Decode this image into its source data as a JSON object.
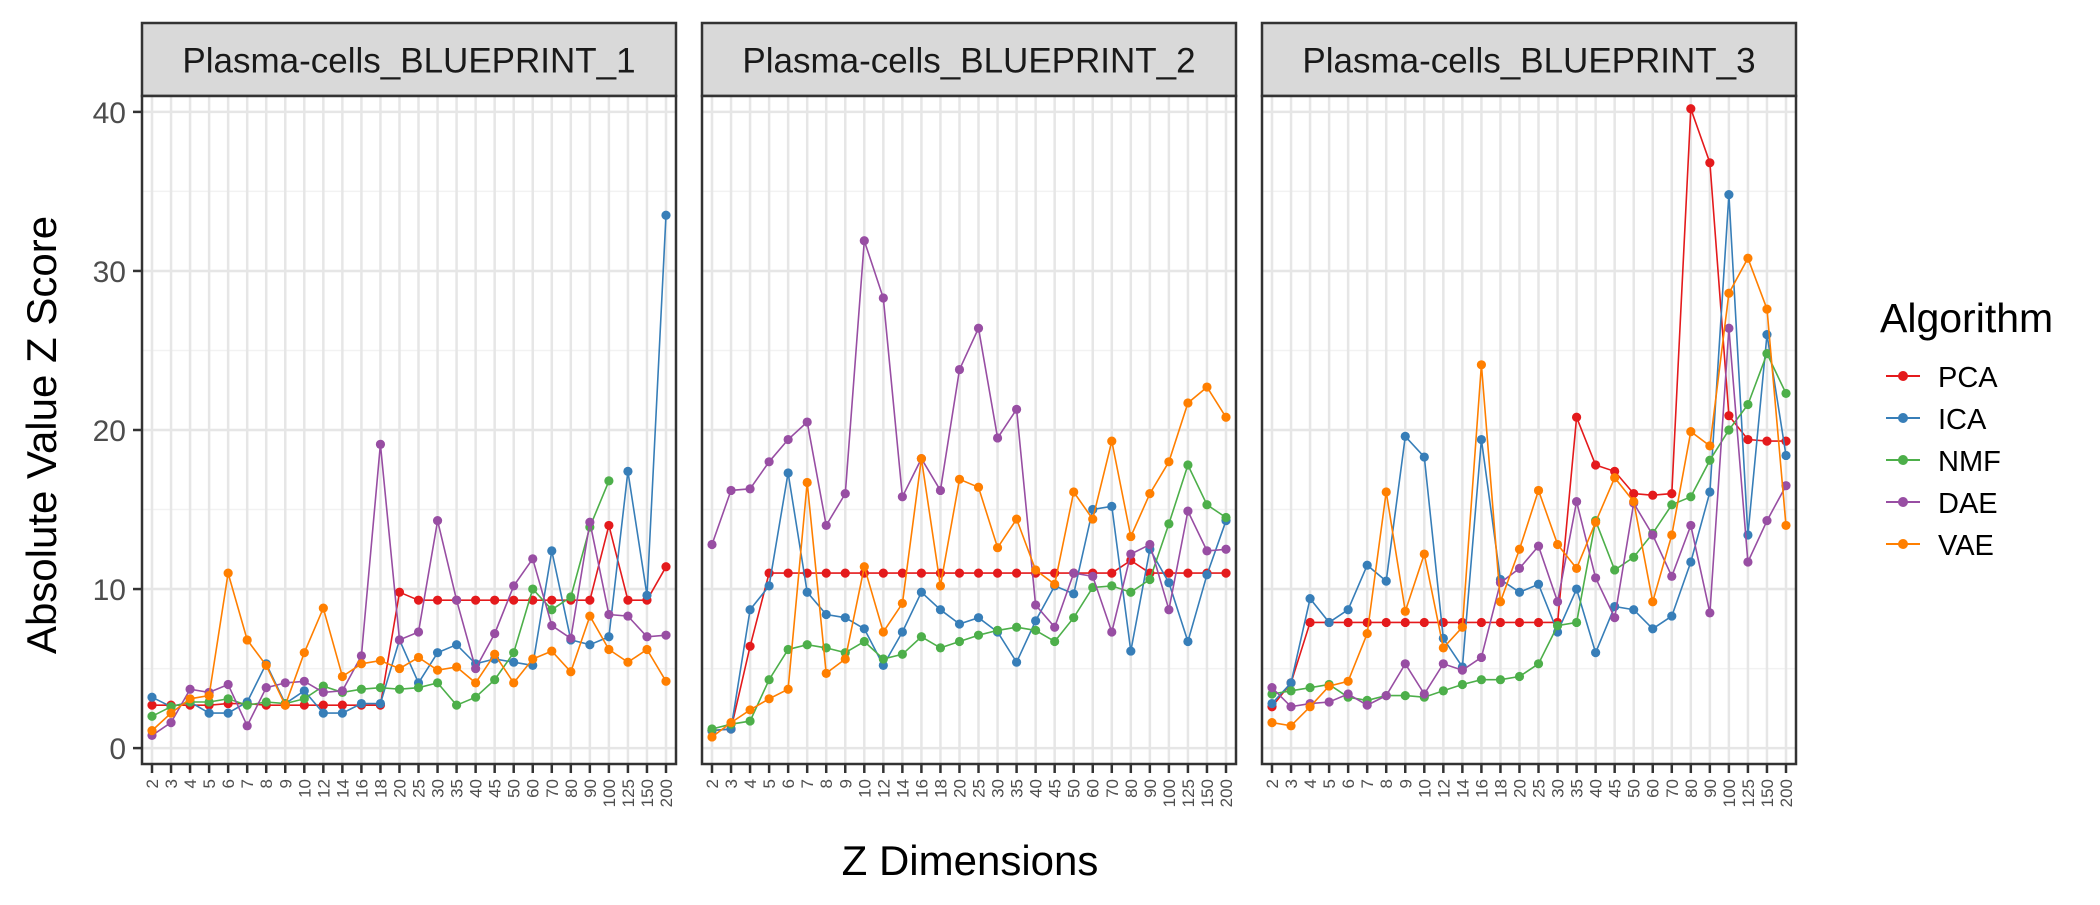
{
  "chart_data": {
    "type": "line",
    "ylabel": "Absolute Value Z Score",
    "xlabel": "Z Dimensions",
    "ylim": [
      -1,
      41
    ],
    "y_ticks": [
      0,
      10,
      20,
      30,
      40
    ],
    "grid": true,
    "legend": {
      "title": "Algorithm",
      "placement": "right",
      "entries": [
        "PCA",
        "ICA",
        "NMF",
        "DAE",
        "VAE"
      ]
    },
    "colors": {
      "PCA": "#e41a1c",
      "ICA": "#377eb8",
      "NMF": "#4daf4a",
      "DAE": "#984ea3",
      "VAE": "#ff7f00"
    },
    "categories": [
      "2",
      "3",
      "4",
      "5",
      "6",
      "7",
      "8",
      "9",
      "10",
      "12",
      "14",
      "16",
      "18",
      "20",
      "25",
      "30",
      "35",
      "40",
      "45",
      "50",
      "60",
      "70",
      "80",
      "90",
      "100",
      "125",
      "150",
      "200"
    ],
    "facets": [
      {
        "title": "Plasma-cells_BLUEPRINT_1",
        "series": [
          {
            "name": "PCA",
            "values": [
              2.7,
              2.7,
              2.7,
              2.7,
              2.8,
              2.8,
              2.7,
              2.7,
              2.7,
              2.7,
              2.7,
              2.7,
              2.7,
              9.8,
              9.3,
              9.3,
              9.3,
              9.3,
              9.3,
              9.3,
              9.3,
              9.3,
              9.3,
              9.3,
              14.0,
              9.3,
              9.3,
              11.4
            ]
          },
          {
            "name": "ICA",
            "values": [
              3.2,
              2.6,
              2.9,
              2.2,
              2.2,
              2.9,
              5.3,
              2.8,
              3.6,
              2.2,
              2.2,
              2.8,
              2.8,
              6.8,
              4.1,
              6.0,
              6.5,
              5.3,
              5.6,
              5.4,
              5.2,
              12.4,
              6.8,
              6.5,
              7.0,
              17.4,
              9.6,
              33.5
            ]
          },
          {
            "name": "NMF",
            "values": [
              2.0,
              2.6,
              2.9,
              2.9,
              3.1,
              2.7,
              2.9,
              2.8,
              3.1,
              3.9,
              3.5,
              3.7,
              3.8,
              3.7,
              3.8,
              4.1,
              2.7,
              3.2,
              4.3,
              6.0,
              10.0,
              8.7,
              9.5,
              13.9,
              16.8,
              null,
              null,
              null
            ]
          },
          {
            "name": "DAE",
            "values": [
              0.8,
              1.6,
              3.7,
              3.5,
              4.0,
              1.4,
              3.8,
              4.1,
              4.2,
              3.5,
              3.6,
              5.8,
              19.1,
              6.8,
              7.3,
              14.3,
              9.3,
              5.0,
              7.2,
              10.2,
              11.9,
              7.7,
              6.9,
              14.2,
              8.4,
              8.3,
              7.0,
              7.1
            ]
          },
          {
            "name": "VAE",
            "values": [
              1.1,
              2.2,
              3.1,
              3.3,
              11.0,
              6.8,
              5.2,
              2.7,
              6.0,
              8.8,
              4.5,
              5.3,
              5.5,
              5.0,
              5.7,
              4.9,
              5.1,
              4.1,
              5.9,
              4.1,
              5.6,
              6.1,
              4.8,
              8.3,
              6.2,
              5.4,
              6.2,
              4.2
            ]
          }
        ]
      },
      {
        "title": "Plasma-cells_BLUEPRINT_2",
        "series": [
          {
            "name": "PCA",
            "values": [
              1.1,
              1.2,
              6.4,
              11.0,
              11.0,
              11.0,
              11.0,
              11.0,
              11.0,
              11.0,
              11.0,
              11.0,
              11.0,
              11.0,
              11.0,
              11.0,
              11.0,
              11.0,
              11.0,
              11.0,
              11.0,
              11.0,
              11.8,
              11.0,
              11.0,
              11.0,
              11.0,
              11.0
            ]
          },
          {
            "name": "ICA",
            "values": [
              1.1,
              1.2,
              8.7,
              10.2,
              17.3,
              9.8,
              8.4,
              8.2,
              7.5,
              5.2,
              7.3,
              9.8,
              8.7,
              7.8,
              8.2,
              7.3,
              5.4,
              8.0,
              10.2,
              9.7,
              15.0,
              15.2,
              6.1,
              12.5,
              10.4,
              6.7,
              10.9,
              14.3
            ]
          },
          {
            "name": "NMF",
            "values": [
              1.2,
              1.5,
              1.7,
              4.3,
              6.2,
              6.5,
              6.3,
              6.0,
              6.7,
              5.6,
              5.9,
              7.0,
              6.3,
              6.7,
              7.1,
              7.4,
              7.6,
              7.4,
              6.7,
              8.2,
              10.1,
              10.2,
              9.8,
              10.6,
              14.1,
              17.8,
              15.3,
              14.5
            ]
          },
          {
            "name": "DAE",
            "values": [
              12.8,
              16.2,
              16.3,
              18.0,
              19.4,
              20.5,
              14.0,
              16.0,
              31.9,
              28.3,
              15.8,
              18.2,
              16.2,
              23.8,
              26.4,
              19.5,
              21.3,
              9.0,
              7.6,
              11.0,
              10.8,
              7.3,
              12.2,
              12.8,
              8.7,
              14.9,
              12.4,
              12.5
            ]
          },
          {
            "name": "VAE",
            "values": [
              0.7,
              1.6,
              2.4,
              3.1,
              3.7,
              16.7,
              4.7,
              5.6,
              11.4,
              7.3,
              9.1,
              18.2,
              10.2,
              16.9,
              16.4,
              12.6,
              14.4,
              11.2,
              10.3,
              16.1,
              14.4,
              19.3,
              13.3,
              16.0,
              18.0,
              21.7,
              22.7,
              20.8
            ]
          }
        ]
      },
      {
        "title": "Plasma-cells_BLUEPRINT_3",
        "series": [
          {
            "name": "PCA",
            "values": [
              2.6,
              4.1,
              7.9,
              7.9,
              7.9,
              7.9,
              7.9,
              7.9,
              7.9,
              7.9,
              7.9,
              7.9,
              7.9,
              7.9,
              7.9,
              7.9,
              20.8,
              17.8,
              17.4,
              16.0,
              15.9,
              16.0,
              40.2,
              36.8,
              20.9,
              19.4,
              19.3,
              19.3
            ]
          },
          {
            "name": "ICA",
            "values": [
              2.8,
              4.1,
              9.4,
              7.9,
              8.7,
              11.5,
              10.5,
              19.6,
              18.3,
              6.9,
              5.1,
              19.4,
              10.6,
              9.8,
              10.3,
              7.3,
              10.0,
              6.0,
              8.9,
              8.7,
              7.5,
              8.3,
              11.7,
              16.1,
              34.8,
              13.4,
              26.0,
              18.4
            ]
          },
          {
            "name": "NMF",
            "values": [
              3.4,
              3.6,
              3.8,
              4.0,
              3.2,
              3.0,
              3.3,
              3.3,
              3.2,
              3.6,
              4.0,
              4.3,
              4.3,
              4.5,
              5.3,
              7.7,
              7.9,
              14.3,
              11.2,
              12.0,
              13.5,
              15.3,
              15.8,
              18.1,
              20.0,
              21.6,
              24.8,
              22.3
            ]
          },
          {
            "name": "DAE",
            "values": [
              3.8,
              2.6,
              2.8,
              2.9,
              3.4,
              2.7,
              3.3,
              5.3,
              3.4,
              5.3,
              4.9,
              5.7,
              10.4,
              11.3,
              12.7,
              9.2,
              15.5,
              10.7,
              8.2,
              15.4,
              13.4,
              10.8,
              14.0,
              8.5,
              26.4,
              11.7,
              14.3,
              16.5
            ]
          },
          {
            "name": "VAE",
            "values": [
              1.6,
              1.4,
              2.6,
              3.9,
              4.2,
              7.2,
              16.1,
              8.6,
              12.2,
              6.3,
              7.6,
              24.1,
              9.2,
              12.5,
              16.2,
              12.8,
              11.3,
              14.2,
              17.0,
              15.5,
              9.2,
              13.4,
              19.9,
              19.0,
              28.6,
              30.8,
              27.6,
              14.0
            ]
          }
        ]
      }
    ]
  }
}
